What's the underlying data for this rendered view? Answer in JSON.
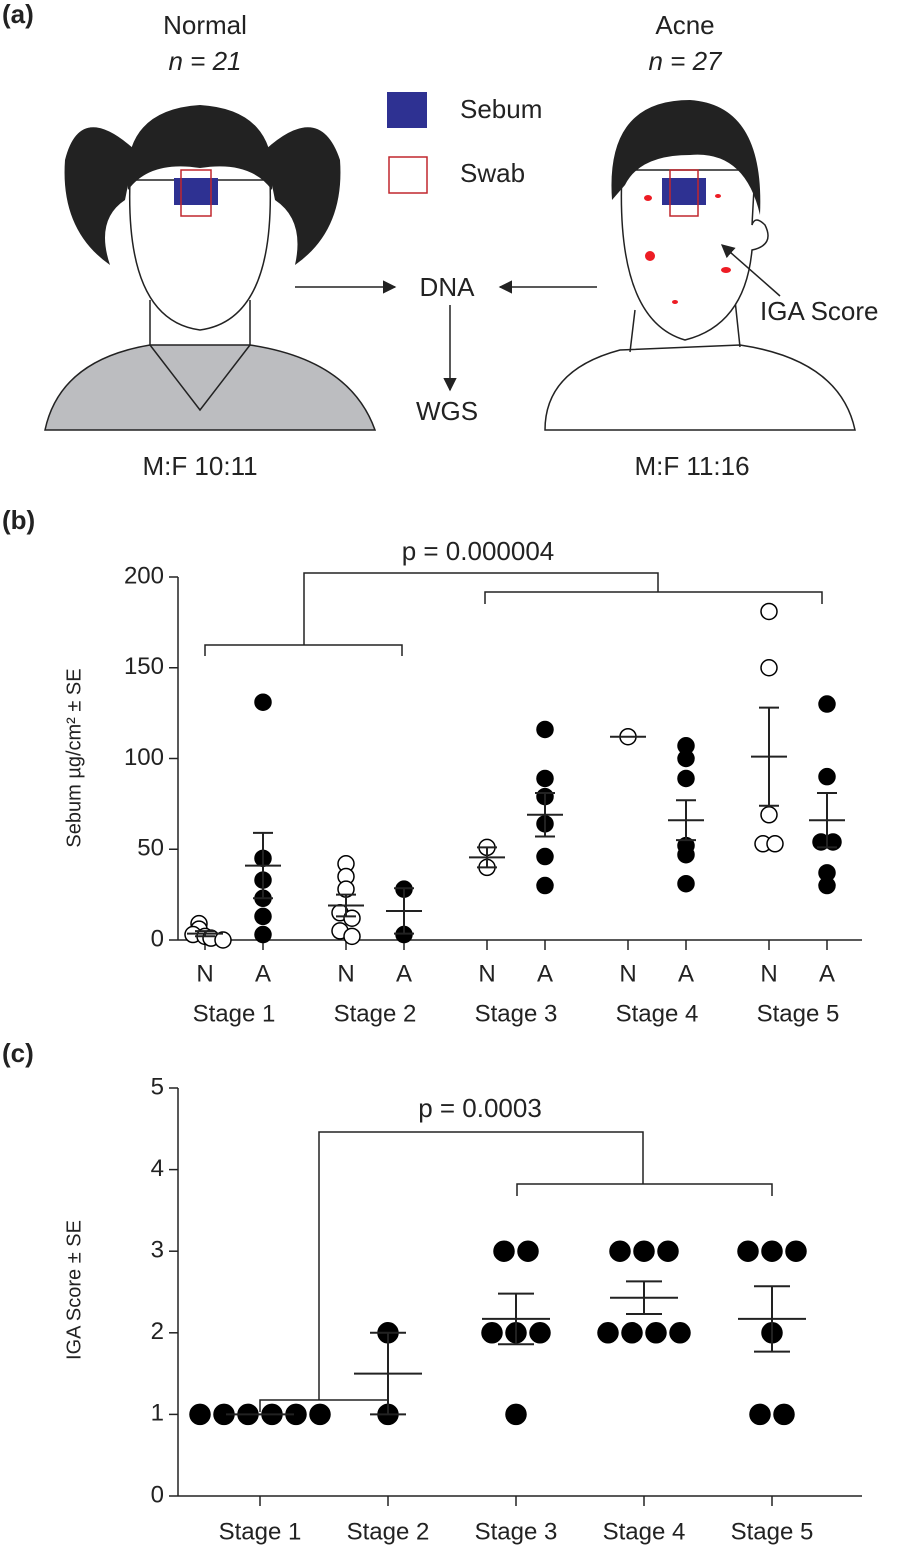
{
  "panel_labels": [
    "(a)",
    "(b)",
    "(c)"
  ],
  "diagram": {
    "normal": {
      "title": "Normal",
      "n": "n = 21",
      "ratio": "M:F 10:11"
    },
    "acne": {
      "title": "Acne",
      "n": "n = 27",
      "ratio": "M:F 11:16"
    },
    "legend": [
      "Sebum",
      "Swab"
    ],
    "dna": "DNA",
    "wgs": "WGS",
    "iga": "IGA Score"
  },
  "chart_data": [
    {
      "type": "dot",
      "y_label": "Sebum µg/cm² ± SE",
      "annotation": "p = 0.000004",
      "categories": [
        "N",
        "A",
        "N",
        "A",
        "N",
        "A",
        "N",
        "A",
        "N",
        "A"
      ],
      "groups": [
        "Stage 1",
        "Stage 2",
        "Stage 3",
        "Stage 4",
        "Stage 5"
      ],
      "open": [
        true,
        false,
        true,
        false,
        true,
        false,
        true,
        false,
        true,
        false
      ],
      "points": [
        [
          9,
          6,
          3,
          2,
          1,
          0
        ],
        [
          131,
          45,
          33,
          23,
          13,
          3
        ],
        [
          42,
          35,
          28,
          15,
          12,
          5,
          2
        ],
        [
          28,
          3
        ],
        [
          51,
          40
        ],
        [
          116,
          89,
          79,
          64,
          46,
          30
        ],
        [
          112
        ],
        [
          107,
          100,
          89,
          52,
          47,
          31
        ],
        [
          181,
          150,
          69,
          53,
          53
        ],
        [
          130,
          90,
          54,
          54,
          37,
          30
        ]
      ],
      "mean": [
        3.5,
        41,
        19,
        16,
        45.5,
        69,
        112,
        66,
        101,
        66
      ],
      "se": [
        1.4,
        18,
        6,
        12.5,
        5.5,
        12,
        0,
        11,
        27,
        15
      ],
      "ylim": [
        0,
        200
      ],
      "yticks": [
        0,
        50,
        100,
        150,
        200
      ],
      "color": "#000000"
    },
    {
      "type": "dot",
      "y_label": "IGA Score  ± SE",
      "annotation": "p = 0.0003",
      "categories": [
        "Stage 1",
        "Stage 2",
        "Stage 3",
        "Stage 4",
        "Stage 5"
      ],
      "points": [
        [
          1,
          1,
          1,
          1,
          1,
          1
        ],
        [
          2,
          1
        ],
        [
          3,
          3,
          2,
          2,
          2,
          1
        ],
        [
          3,
          3,
          3,
          2,
          2,
          2,
          2
        ],
        [
          3,
          3,
          3,
          2,
          1,
          1
        ]
      ],
      "mean": [
        1,
        1.5,
        2.17,
        2.43,
        2.17
      ],
      "se": [
        0,
        0.5,
        0.31,
        0.2,
        0.4
      ],
      "ylim": [
        0,
        5
      ],
      "yticks": [
        0,
        1,
        2,
        3,
        4,
        5
      ],
      "color": "#000000"
    }
  ]
}
